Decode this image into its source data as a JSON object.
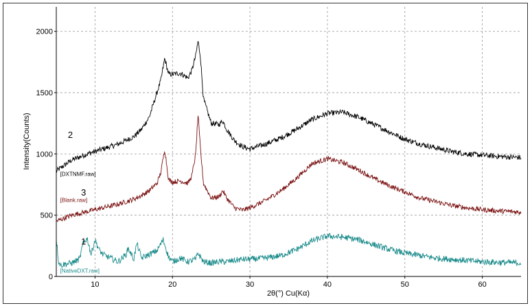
{
  "chart_data": {
    "type": "line",
    "title": "",
    "xlabel": "2θ(°) Cu(Kα)",
    "ylabel": "Intensity(Counts)",
    "xlim": [
      5,
      65
    ],
    "ylim": [
      0,
      2200
    ],
    "x_ticks": [
      10,
      20,
      30,
      40,
      50,
      60
    ],
    "y_ticks": [
      0,
      500,
      1000,
      1500,
      2000
    ],
    "grid": true,
    "series": [
      {
        "name": "[DXTNMF.raw]",
        "number": "2",
        "color": "#000000",
        "x": [
          5,
          7,
          9,
          11,
          13,
          15,
          16,
          17,
          18,
          18.5,
          19,
          19.5,
          20,
          21,
          22,
          22.5,
          23,
          23.3,
          23.6,
          24,
          25,
          26,
          26.5,
          27,
          28,
          29,
          30,
          32,
          34,
          36,
          38,
          40,
          42,
          44,
          46,
          48,
          50,
          52,
          54,
          56,
          58,
          60,
          62,
          65
        ],
        "y": [
          860,
          950,
          1000,
          1040,
          1080,
          1140,
          1200,
          1300,
          1500,
          1600,
          1780,
          1650,
          1650,
          1660,
          1620,
          1680,
          1800,
          1920,
          1800,
          1450,
          1250,
          1240,
          1270,
          1200,
          1110,
          1060,
          1040,
          1080,
          1130,
          1200,
          1280,
          1330,
          1340,
          1300,
          1240,
          1180,
          1120,
          1080,
          1050,
          1020,
          1000,
          990,
          980,
          970
        ]
      },
      {
        "name": "[Blank.raw]",
        "number": "3",
        "color": "#7a1010",
        "x": [
          5,
          7,
          9,
          11,
          13,
          15,
          16,
          17,
          18,
          18.5,
          19,
          19.5,
          20,
          21,
          22,
          22.5,
          23,
          23.3,
          23.6,
          24,
          25,
          26,
          26.5,
          27,
          28,
          29,
          30,
          32,
          34,
          36,
          38,
          40,
          42,
          44,
          46,
          48,
          50,
          52,
          54,
          56,
          58,
          60,
          62,
          65
        ],
        "y": [
          450,
          500,
          530,
          560,
          590,
          630,
          660,
          700,
          760,
          850,
          1040,
          790,
          770,
          780,
          760,
          820,
          1000,
          1320,
          1050,
          760,
          640,
          650,
          700,
          640,
          560,
          540,
          560,
          620,
          700,
          800,
          920,
          960,
          930,
          870,
          800,
          740,
          690,
          640,
          610,
          580,
          560,
          545,
          535,
          525
        ]
      },
      {
        "name": "[NativeDXT.raw]",
        "number": "1",
        "color": "#1a8a8a",
        "x": [
          5,
          5.3,
          5.6,
          6,
          7,
          8,
          8.5,
          9,
          9.5,
          10,
          10.5,
          11,
          12,
          13,
          14,
          14.3,
          15,
          15.4,
          16,
          17,
          18,
          18.8,
          19.5,
          20,
          21,
          22,
          23,
          23.3,
          24,
          25,
          26,
          27,
          28,
          29,
          30,
          32,
          34,
          36,
          38,
          40,
          42,
          44,
          46,
          48,
          50,
          52,
          54,
          56,
          58,
          60,
          62,
          65
        ],
        "y": [
          310,
          120,
          90,
          100,
          110,
          140,
          280,
          310,
          180,
          300,
          220,
          180,
          150,
          120,
          180,
          230,
          140,
          270,
          150,
          180,
          210,
          300,
          160,
          120,
          150,
          120,
          140,
          190,
          120,
          110,
          120,
          120,
          130,
          140,
          140,
          150,
          170,
          220,
          290,
          330,
          320,
          300,
          260,
          220,
          190,
          170,
          150,
          140,
          130,
          120,
          115,
          110
        ]
      }
    ]
  }
}
